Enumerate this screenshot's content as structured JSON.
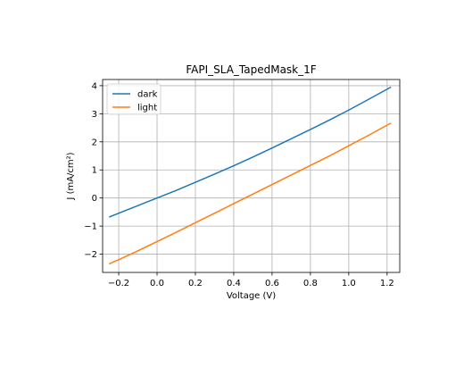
{
  "chart_data": {
    "type": "line",
    "title": "FAPI_SLA_TapedMask_1F",
    "xlabel": "Voltage (V)",
    "ylabel": "J (mA/cm²)",
    "xlim": [
      -0.284,
      1.266
    ],
    "ylim": [
      -2.65,
      4.22
    ],
    "xticks": [
      -0.2,
      0.0,
      0.2,
      0.4,
      0.6,
      0.8,
      1.0,
      1.2
    ],
    "xtick_labels": [
      "−0.2",
      "0.0",
      "0.2",
      "0.4",
      "0.6",
      "0.8",
      "1.0",
      "1.2"
    ],
    "yticks": [
      -2,
      -1,
      0,
      1,
      2,
      3,
      4
    ],
    "ytick_labels": [
      "−2",
      "−1",
      "0",
      "1",
      "2",
      "3",
      "4"
    ],
    "grid": true,
    "legend": "upper-left",
    "series": [
      {
        "name": "dark",
        "color": "#1f77b4",
        "x": [
          -0.25,
          -0.2,
          -0.1,
          0.0,
          0.1,
          0.2,
          0.3,
          0.4,
          0.5,
          0.6,
          0.7,
          0.8,
          0.9,
          1.0,
          1.1,
          1.22
        ],
        "y": [
          -0.68,
          -0.54,
          -0.27,
          0.0,
          0.27,
          0.56,
          0.85,
          1.15,
          1.46,
          1.78,
          2.11,
          2.44,
          2.78,
          3.13,
          3.5,
          3.95
        ]
      },
      {
        "name": "light",
        "color": "#ff7f0e",
        "x": [
          -0.25,
          -0.22,
          -0.2,
          -0.1,
          0.0,
          0.1,
          0.2,
          0.3,
          0.4,
          0.5,
          0.6,
          0.7,
          0.8,
          0.9,
          1.0,
          1.1,
          1.22
        ],
        "y": [
          -2.35,
          -2.25,
          -2.2,
          -1.88,
          -1.55,
          -1.22,
          -0.88,
          -0.54,
          -0.2,
          0.14,
          0.48,
          0.82,
          1.16,
          1.5,
          1.86,
          2.22,
          2.67
        ]
      }
    ]
  }
}
